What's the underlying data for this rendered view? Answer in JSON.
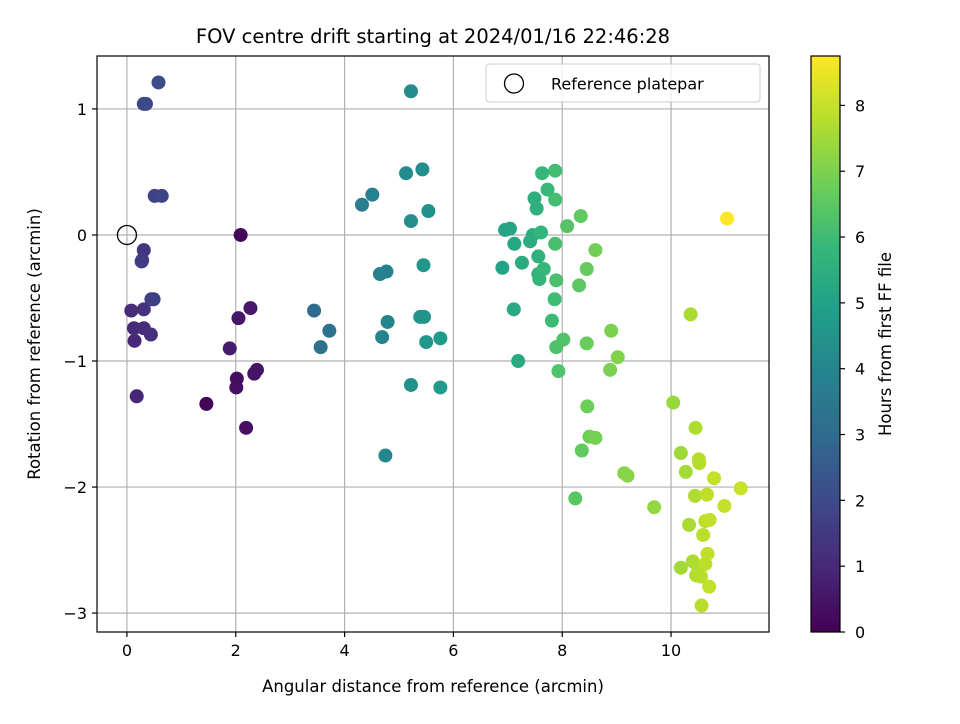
{
  "chart_data": {
    "type": "scatter",
    "title": "FOV centre drift starting at 2024/01/16 22:46:28",
    "xlabel": "Angular distance from reference (arcmin)",
    "ylabel": "Rotation from reference (arcmin)",
    "xlim": [
      -0.55,
      11.8
    ],
    "ylim": [
      -3.15,
      1.42
    ],
    "xticks": [
      0,
      2,
      4,
      6,
      8,
      10
    ],
    "yticks": [
      -3,
      -2,
      -1,
      0,
      1
    ],
    "xtick_labels": [
      "0",
      "2",
      "4",
      "6",
      "8",
      "10"
    ],
    "ytick_labels": [
      "−3",
      "−2",
      "−1",
      "0",
      "1"
    ],
    "grid": true,
    "legend": {
      "position": "top-right",
      "entries": [
        "Reference platepar"
      ]
    },
    "colorbar": {
      "label": "Hours from first FF file",
      "colormap": "viridis",
      "range": [
        0,
        8.75
      ],
      "ticks": [
        0,
        1,
        2,
        3,
        4,
        5,
        6,
        7,
        8
      ],
      "tick_labels": [
        "0",
        "1",
        "2",
        "3",
        "4",
        "5",
        "6",
        "7",
        "8"
      ]
    },
    "reference_point": {
      "x": 0,
      "y": 0
    },
    "points": [
      {
        "x": 1.46,
        "y": -1.34,
        "c": 0.1
      },
      {
        "x": 2.09,
        "y": 0.0,
        "c": 0.2
      },
      {
        "x": 2.02,
        "y": -1.14,
        "c": 0.3
      },
      {
        "x": 2.01,
        "y": -1.21,
        "c": 0.35
      },
      {
        "x": 2.19,
        "y": -1.53,
        "c": 0.4
      },
      {
        "x": 2.34,
        "y": -1.1,
        "c": 0.45
      },
      {
        "x": 2.39,
        "y": -1.07,
        "c": 0.5
      },
      {
        "x": 2.05,
        "y": -0.66,
        "c": 0.55
      },
      {
        "x": 2.27,
        "y": -0.58,
        "c": 0.6
      },
      {
        "x": 1.89,
        "y": -0.9,
        "c": 0.65
      },
      {
        "x": 0.18,
        "y": -1.28,
        "c": 0.9
      },
      {
        "x": 0.14,
        "y": -0.84,
        "c": 1.0
      },
      {
        "x": 0.13,
        "y": -0.74,
        "c": 1.05
      },
      {
        "x": 0.08,
        "y": -0.6,
        "c": 1.1
      },
      {
        "x": 0.31,
        "y": -0.74,
        "c": 1.15
      },
      {
        "x": 0.44,
        "y": -0.79,
        "c": 1.2
      },
      {
        "x": 0.31,
        "y": -0.59,
        "c": 1.3
      },
      {
        "x": 0.31,
        "y": -0.12,
        "c": 1.4
      },
      {
        "x": 0.28,
        "y": -0.2,
        "c": 1.5
      },
      {
        "x": 0.27,
        "y": -0.21,
        "c": 1.55
      },
      {
        "x": 0.45,
        "y": -0.51,
        "c": 1.6
      },
      {
        "x": 0.49,
        "y": -0.51,
        "c": 1.65
      },
      {
        "x": 0.51,
        "y": 0.31,
        "c": 1.75
      },
      {
        "x": 0.64,
        "y": 0.31,
        "c": 1.85
      },
      {
        "x": 0.31,
        "y": 1.04,
        "c": 1.9
      },
      {
        "x": 0.35,
        "y": 1.04,
        "c": 1.95
      },
      {
        "x": 0.58,
        "y": 1.21,
        "c": 2.05
      },
      {
        "x": 3.44,
        "y": -0.6,
        "c": 3.1
      },
      {
        "x": 3.56,
        "y": -0.89,
        "c": 3.25
      },
      {
        "x": 3.72,
        "y": -0.76,
        "c": 3.35
      },
      {
        "x": 4.32,
        "y": 0.24,
        "c": 3.7
      },
      {
        "x": 4.51,
        "y": 0.32,
        "c": 3.8
      },
      {
        "x": 4.65,
        "y": -0.31,
        "c": 3.85
      },
      {
        "x": 4.77,
        "y": -0.29,
        "c": 3.9
      },
      {
        "x": 4.69,
        "y": -0.81,
        "c": 3.95
      },
      {
        "x": 4.79,
        "y": -0.69,
        "c": 4.0
      },
      {
        "x": 4.75,
        "y": -1.75,
        "c": 4.05
      },
      {
        "x": 5.13,
        "y": 0.49,
        "c": 4.2
      },
      {
        "x": 5.22,
        "y": 1.14,
        "c": 4.25
      },
      {
        "x": 5.22,
        "y": 0.11,
        "c": 4.3
      },
      {
        "x": 5.43,
        "y": 0.52,
        "c": 4.35
      },
      {
        "x": 5.54,
        "y": 0.19,
        "c": 4.4
      },
      {
        "x": 5.22,
        "y": -1.19,
        "c": 4.45
      },
      {
        "x": 5.39,
        "y": -0.65,
        "c": 4.5
      },
      {
        "x": 5.46,
        "y": -0.65,
        "c": 4.55
      },
      {
        "x": 5.45,
        "y": -0.24,
        "c": 4.6
      },
      {
        "x": 5.5,
        "y": -0.85,
        "c": 4.65
      },
      {
        "x": 5.76,
        "y": -0.82,
        "c": 4.75
      },
      {
        "x": 5.76,
        "y": -1.21,
        "c": 4.8
      },
      {
        "x": 6.9,
        "y": -0.26,
        "c": 5.05
      },
      {
        "x": 6.95,
        "y": 0.04,
        "c": 5.1
      },
      {
        "x": 7.04,
        "y": 0.05,
        "c": 5.15
      },
      {
        "x": 7.12,
        "y": -0.07,
        "c": 5.2
      },
      {
        "x": 7.11,
        "y": -0.59,
        "c": 5.25
      },
      {
        "x": 7.19,
        "y": -1.0,
        "c": 5.3
      },
      {
        "x": 7.26,
        "y": -0.22,
        "c": 5.35
      },
      {
        "x": 7.41,
        "y": -0.05,
        "c": 5.4
      },
      {
        "x": 7.46,
        "y": 0.0,
        "c": 5.45
      },
      {
        "x": 7.49,
        "y": 0.29,
        "c": 5.5
      },
      {
        "x": 7.53,
        "y": 0.21,
        "c": 5.55
      },
      {
        "x": 7.56,
        "y": -0.17,
        "c": 5.6
      },
      {
        "x": 7.56,
        "y": -0.31,
        "c": 5.65
      },
      {
        "x": 7.58,
        "y": -0.35,
        "c": 5.7
      },
      {
        "x": 7.61,
        "y": 0.02,
        "c": 5.75
      },
      {
        "x": 7.63,
        "y": 0.49,
        "c": 5.8
      },
      {
        "x": 7.66,
        "y": -0.27,
        "c": 5.85
      },
      {
        "x": 7.73,
        "y": 0.36,
        "c": 5.9
      },
      {
        "x": 7.81,
        "y": -0.68,
        "c": 5.95
      },
      {
        "x": 7.86,
        "y": -0.51,
        "c": 6.0
      },
      {
        "x": 7.87,
        "y": 0.51,
        "c": 6.05
      },
      {
        "x": 7.87,
        "y": 0.28,
        "c": 6.1
      },
      {
        "x": 7.87,
        "y": -0.07,
        "c": 6.15
      },
      {
        "x": 7.89,
        "y": -0.36,
        "c": 6.2
      },
      {
        "x": 7.89,
        "y": -0.89,
        "c": 6.25
      },
      {
        "x": 7.93,
        "y": -1.08,
        "c": 6.3
      },
      {
        "x": 8.02,
        "y": -0.83,
        "c": 6.35
      },
      {
        "x": 8.09,
        "y": 0.07,
        "c": 6.4
      },
      {
        "x": 8.24,
        "y": -2.09,
        "c": 6.45
      },
      {
        "x": 8.31,
        "y": -0.4,
        "c": 6.5
      },
      {
        "x": 8.34,
        "y": 0.15,
        "c": 6.55
      },
      {
        "x": 8.36,
        "y": -1.71,
        "c": 6.6
      },
      {
        "x": 8.45,
        "y": -0.27,
        "c": 6.65
      },
      {
        "x": 8.45,
        "y": -0.86,
        "c": 6.7
      },
      {
        "x": 8.46,
        "y": -1.36,
        "c": 6.75
      },
      {
        "x": 8.5,
        "y": -1.6,
        "c": 6.8
      },
      {
        "x": 8.61,
        "y": -0.12,
        "c": 6.85
      },
      {
        "x": 8.61,
        "y": -1.61,
        "c": 6.9
      },
      {
        "x": 8.88,
        "y": -1.07,
        "c": 6.95
      },
      {
        "x": 8.9,
        "y": -0.76,
        "c": 7.0
      },
      {
        "x": 9.02,
        "y": -0.97,
        "c": 7.05
      },
      {
        "x": 9.14,
        "y": -1.89,
        "c": 7.1
      },
      {
        "x": 9.2,
        "y": -1.91,
        "c": 7.15
      },
      {
        "x": 9.69,
        "y": -2.16,
        "c": 7.3
      },
      {
        "x": 10.04,
        "y": -1.33,
        "c": 7.4
      },
      {
        "x": 10.18,
        "y": -1.73,
        "c": 7.45
      },
      {
        "x": 10.18,
        "y": -2.64,
        "c": 7.5
      },
      {
        "x": 10.27,
        "y": -1.88,
        "c": 7.55
      },
      {
        "x": 10.33,
        "y": -2.3,
        "c": 7.6
      },
      {
        "x": 10.36,
        "y": -0.63,
        "c": 7.62
      },
      {
        "x": 10.4,
        "y": -2.59,
        "c": 7.65
      },
      {
        "x": 10.44,
        "y": -2.07,
        "c": 7.68
      },
      {
        "x": 10.45,
        "y": -1.53,
        "c": 7.7
      },
      {
        "x": 10.46,
        "y": -2.7,
        "c": 7.72
      },
      {
        "x": 10.5,
        "y": -2.65,
        "c": 7.74
      },
      {
        "x": 10.51,
        "y": -1.78,
        "c": 7.76
      },
      {
        "x": 10.52,
        "y": -1.81,
        "c": 7.78
      },
      {
        "x": 10.55,
        "y": -2.71,
        "c": 7.8
      },
      {
        "x": 10.56,
        "y": -2.94,
        "c": 7.82
      },
      {
        "x": 10.59,
        "y": -2.38,
        "c": 7.84
      },
      {
        "x": 10.63,
        "y": -2.61,
        "c": 7.86
      },
      {
        "x": 10.63,
        "y": -2.27,
        "c": 7.88
      },
      {
        "x": 10.66,
        "y": -2.06,
        "c": 7.9
      },
      {
        "x": 10.67,
        "y": -2.53,
        "c": 7.92
      },
      {
        "x": 10.7,
        "y": -2.79,
        "c": 7.94
      },
      {
        "x": 10.71,
        "y": -2.26,
        "c": 7.96
      },
      {
        "x": 10.79,
        "y": -1.93,
        "c": 7.98
      },
      {
        "x": 10.98,
        "y": -2.15,
        "c": 8.0
      },
      {
        "x": 11.28,
        "y": -2.01,
        "c": 8.05
      },
      {
        "x": 11.03,
        "y": 0.13,
        "c": 8.75
      }
    ]
  }
}
